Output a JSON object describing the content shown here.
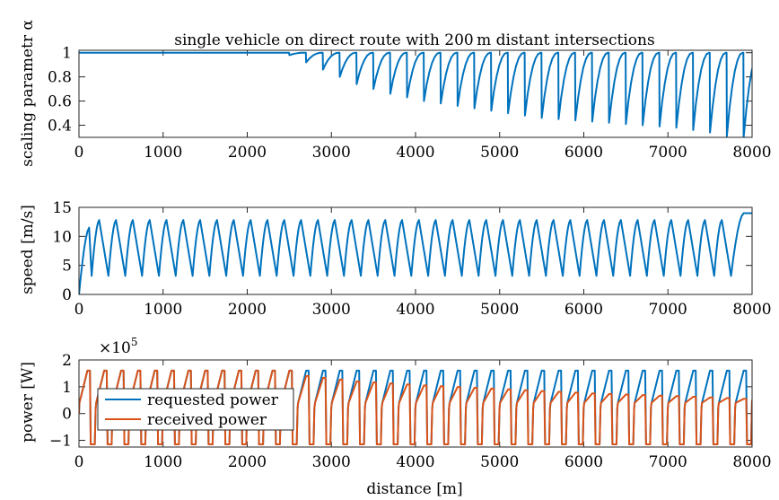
{
  "chart_data": [
    {
      "type": "line",
      "title": "single vehicle on direct route with 200 m distant intersections",
      "xlabel": "",
      "ylabel": "scaling parametr α",
      "xlim": [
        0,
        8000
      ],
      "ylim": [
        0.3,
        1.02
      ],
      "xticks": [
        0,
        1000,
        2000,
        3000,
        4000,
        5000,
        6000,
        7000,
        8000
      ],
      "yticks": [
        0.4,
        0.6,
        0.8,
        1
      ],
      "yticklabels": [
        "0.4",
        "0.6",
        "0.8",
        "1"
      ],
      "grid": false,
      "series": [
        {
          "color": "#0072BD",
          "pattern": {
            "kind": "dips_from_one",
            "first_dip_x": 2500,
            "period": 200,
            "dip_minimum_at_x": [
              2500,
              2700,
              2900,
              3100,
              3300,
              3500,
              3700,
              3900,
              4100,
              4300,
              4500,
              4700,
              4900,
              5100,
              5300,
              5500,
              5700,
              5900,
              6100,
              6300,
              6500,
              6700,
              6900,
              7100,
              7300,
              7500,
              7700,
              7900
            ],
            "dip_minimum_value": [
              0.98,
              0.92,
              0.86,
              0.8,
              0.74,
              0.7,
              0.66,
              0.63,
              0.6,
              0.58,
              0.56,
              0.54,
              0.52,
              0.5,
              0.48,
              0.46,
              0.45,
              0.44,
              0.43,
              0.42,
              0.41,
              0.4,
              0.39,
              0.38,
              0.36,
              0.34,
              0.31,
              0.3
            ]
          }
        }
      ]
    },
    {
      "type": "line",
      "title": "",
      "xlabel": "",
      "ylabel": "speed [m/s]",
      "xlim": [
        0,
        8000
      ],
      "ylim": [
        0,
        15
      ],
      "xticks": [
        0,
        1000,
        2000,
        3000,
        4000,
        5000,
        6000,
        7000,
        8000
      ],
      "yticks": [
        0,
        5,
        10,
        15
      ],
      "yticklabels": [
        "0",
        "5",
        "10",
        "15"
      ],
      "grid": false,
      "series": [
        {
          "color": "#0072BD",
          "pattern": {
            "kind": "sawtooth",
            "start_value": 0,
            "initial_peak": 11.5,
            "peak": 12.8,
            "trough": 3.2,
            "period": 200,
            "troughs_at_x": [
              150,
              350,
              550,
              750,
              950,
              1150,
              1350,
              1550,
              1750,
              1950,
              2150,
              2350,
              2550,
              2750,
              2950,
              3150,
              3350,
              3550,
              3750,
              3950,
              4150,
              4350,
              4550,
              4750,
              4950,
              5150,
              5350,
              5550,
              5750,
              5950,
              6150,
              6350,
              6550,
              6750,
              6950,
              7150,
              7350,
              7550,
              7750
            ],
            "end_value": 14
          }
        }
      ]
    },
    {
      "type": "line",
      "title": "",
      "xlabel": "distance [m]",
      "ylabel": "power [W]",
      "y_multiplier": "×10",
      "y_multiplier_exp": "5",
      "xlim": [
        0,
        8000
      ],
      "ylim": [
        -1.25,
        2
      ],
      "xticks": [
        0,
        1000,
        2000,
        3000,
        4000,
        5000,
        6000,
        7000,
        8000
      ],
      "yticks": [
        -1,
        0,
        1,
        2
      ],
      "yticklabels": [
        "−1",
        "0",
        "1",
        "2"
      ],
      "grid": false,
      "legend": "lower-left",
      "series": [
        {
          "name": "requested power",
          "color": "#0072BD",
          "pattern": {
            "kind": "pulse_train",
            "period": 200,
            "peak": 1.6,
            "negative": -1.15,
            "negative_at_x": [
              150,
              350,
              550,
              750,
              950,
              1150,
              1350,
              1550,
              1750,
              1950,
              2150,
              2350,
              2550,
              2750,
              2950,
              3150,
              3350,
              3550,
              3750,
              3950,
              4150,
              4350,
              4550,
              4750,
              4950,
              5150,
              5350,
              5550,
              5750,
              5950,
              6150,
              6350,
              6550,
              6750,
              6950,
              7150,
              7350,
              7550,
              7750
            ]
          }
        },
        {
          "name": "received power",
          "color": "#D95319",
          "pattern": {
            "kind": "pulse_train_limited",
            "period": 200,
            "peak_until_x": 2500,
            "peak": 1.6,
            "peak_at_x": [
              2700,
              3300,
              4100,
              5100,
              6100,
              7100,
              7900
            ],
            "peak_value": [
              1.4,
              1.2,
              1.05,
              0.9,
              0.75,
              0.65,
              0.55
            ],
            "negative": -1.15
          }
        }
      ]
    }
  ]
}
